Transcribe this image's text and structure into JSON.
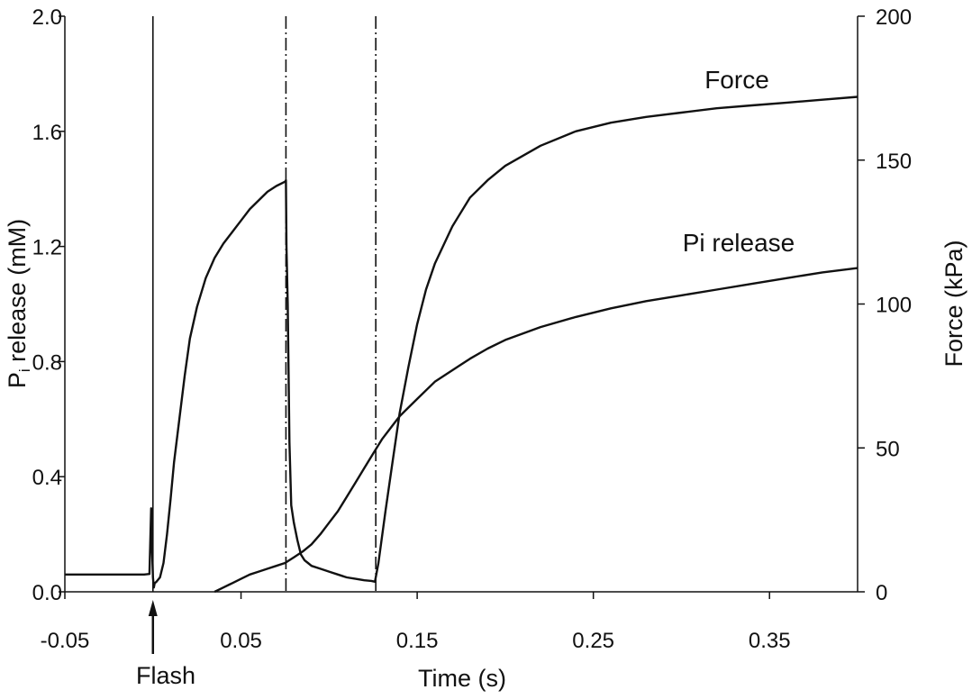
{
  "chart_data": {
    "type": "line",
    "title": "",
    "xlabel": "Time (s)",
    "ylabel_left": {
      "main": "P",
      "sub": "i",
      "rest": " release (mM)"
    },
    "ylabel_right": "Force (kPa)",
    "xlim": [
      -0.05,
      0.4
    ],
    "ylim_left": [
      0,
      2.0
    ],
    "ylim_right": [
      0,
      200
    ],
    "x_ticks": [
      -0.05,
      0.05,
      0.15,
      0.25,
      0.35
    ],
    "x_tick_labels": [
      "-0.05",
      "0.05",
      "0.15",
      "0.25",
      "0.35"
    ],
    "y_left_ticks": [
      0.0,
      0.4,
      0.8,
      1.2,
      1.6,
      2.0
    ],
    "y_left_tick_labels": [
      "0.0",
      "0.4",
      "0.8",
      "1.2",
      "1.6",
      "2.0"
    ],
    "y_right_ticks": [
      0,
      50,
      100,
      150,
      200
    ],
    "y_right_tick_labels": [
      "0",
      "50",
      "100",
      "150",
      "200"
    ],
    "grid": false,
    "vertical_markers": [
      0.0755,
      0.1265
    ],
    "flash": {
      "x": 0.0,
      "label": "Flash"
    },
    "series": [
      {
        "name": "Force",
        "axis": "right",
        "x": [
          -0.05,
          -0.035,
          -0.02,
          -0.005,
          -0.002,
          -0.0015,
          -0.001,
          -0.0005,
          0.0,
          0.0005,
          0.001,
          0.002,
          0.004,
          0.006,
          0.008,
          0.01,
          0.012,
          0.015,
          0.018,
          0.021,
          0.025,
          0.03,
          0.035,
          0.04,
          0.045,
          0.05,
          0.055,
          0.06,
          0.065,
          0.07,
          0.075,
          0.0755,
          0.0758,
          0.0765,
          0.0775,
          0.0785,
          0.08,
          0.082,
          0.084,
          0.086,
          0.088,
          0.09,
          0.095,
          0.1,
          0.105,
          0.11,
          0.115,
          0.12,
          0.124,
          0.126,
          0.128,
          0.132,
          0.136,
          0.14,
          0.145,
          0.15,
          0.155,
          0.16,
          0.17,
          0.18,
          0.19,
          0.2,
          0.22,
          0.24,
          0.26,
          0.28,
          0.3,
          0.32,
          0.34,
          0.36,
          0.38,
          0.4
        ],
        "values": [
          6.0,
          6.0,
          6.0,
          6.0,
          6.2,
          17,
          29,
          15,
          5,
          1.5,
          3,
          3.5,
          5,
          10,
          20,
          32,
          45,
          60,
          75,
          88,
          99,
          109,
          116,
          121,
          125,
          129,
          133,
          136,
          139,
          141,
          142.5,
          143,
          120,
          100,
          52,
          30,
          24,
          18,
          13,
          11,
          10,
          9,
          8,
          7,
          6,
          5,
          4.5,
          4.0,
          3.8,
          3.5,
          10,
          28,
          45,
          62,
          78,
          93,
          105,
          114,
          127,
          137,
          143,
          148,
          155,
          160,
          163,
          165,
          166.5,
          168,
          169,
          170,
          171,
          172
        ]
      },
      {
        "name": "Pi release",
        "axis": "left",
        "x": [
          0.035,
          0.04,
          0.045,
          0.05,
          0.055,
          0.06,
          0.065,
          0.07,
          0.075,
          0.08,
          0.085,
          0.09,
          0.095,
          0.1,
          0.105,
          0.11,
          0.115,
          0.12,
          0.125,
          0.13,
          0.135,
          0.14,
          0.145,
          0.15,
          0.16,
          0.17,
          0.18,
          0.19,
          0.2,
          0.22,
          0.24,
          0.26,
          0.28,
          0.3,
          0.32,
          0.34,
          0.36,
          0.38,
          0.4
        ],
        "values": [
          0.0,
          0.015,
          0.03,
          0.045,
          0.06,
          0.07,
          0.08,
          0.09,
          0.1,
          0.12,
          0.14,
          0.165,
          0.2,
          0.24,
          0.28,
          0.33,
          0.38,
          0.43,
          0.48,
          0.53,
          0.57,
          0.61,
          0.64,
          0.67,
          0.73,
          0.77,
          0.81,
          0.845,
          0.875,
          0.92,
          0.955,
          0.985,
          1.01,
          1.03,
          1.05,
          1.07,
          1.09,
          1.11,
          1.125
        ]
      }
    ]
  }
}
